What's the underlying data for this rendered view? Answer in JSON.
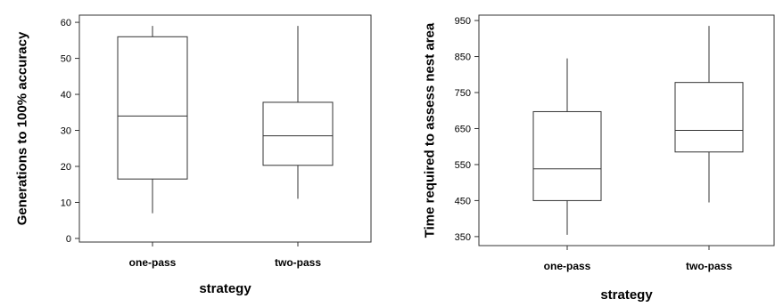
{
  "chart_data": [
    {
      "type": "boxplot",
      "xlabel": "strategy",
      "ylabel": "Generations to 100% accuracy",
      "ylim": [
        -1,
        62
      ],
      "yticks": [
        0,
        10,
        20,
        30,
        40,
        50,
        60
      ],
      "categories": [
        "one-pass",
        "two-pass"
      ],
      "boxes": [
        {
          "category": "one-pass",
          "min": 7,
          "q1": 16.5,
          "median": 34,
          "q3": 56,
          "max": 59
        },
        {
          "category": "two-pass",
          "min": 11,
          "q1": 20.3,
          "median": 28.5,
          "q3": 37.8,
          "max": 59
        }
      ],
      "grid": false,
      "legend": "none"
    },
    {
      "type": "boxplot",
      "xlabel": "strategy",
      "ylabel": "Time required to assess nest area",
      "ylim": [
        325,
        965
      ],
      "yticks": [
        350,
        450,
        550,
        650,
        750,
        850,
        950
      ],
      "categories": [
        "one-pass",
        "two-pass"
      ],
      "boxes": [
        {
          "category": "one-pass",
          "min": 355,
          "q1": 450,
          "median": 538,
          "q3": 697,
          "max": 845
        },
        {
          "category": "two-pass",
          "min": 445,
          "q1": 585,
          "median": 645,
          "q3": 778,
          "max": 935
        }
      ],
      "grid": false,
      "legend": "none"
    }
  ]
}
